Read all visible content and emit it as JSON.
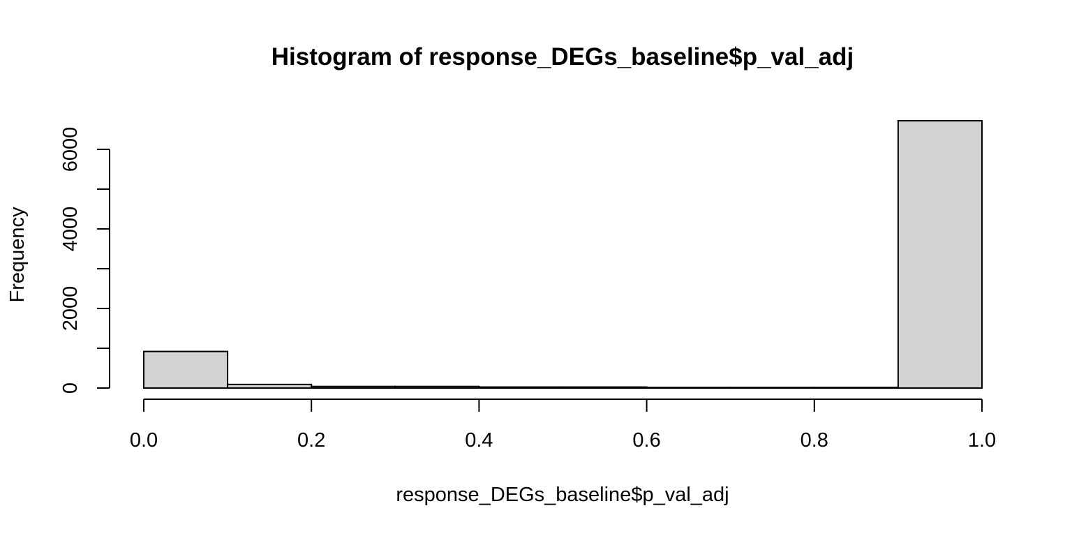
{
  "chart_data": {
    "type": "bar",
    "title": "Histogram of response_DEGs_baseline$p_val_adj",
    "xlabel": "response_DEGs_baseline$p_val_adj",
    "ylabel": "Frequency",
    "bins": [
      {
        "start": 0.0,
        "end": 0.1,
        "count": 920
      },
      {
        "start": 0.1,
        "end": 0.2,
        "count": 90
      },
      {
        "start": 0.2,
        "end": 0.3,
        "count": 40
      },
      {
        "start": 0.3,
        "end": 0.4,
        "count": 40
      },
      {
        "start": 0.4,
        "end": 0.5,
        "count": 25
      },
      {
        "start": 0.5,
        "end": 0.6,
        "count": 25
      },
      {
        "start": 0.6,
        "end": 0.7,
        "count": 15
      },
      {
        "start": 0.7,
        "end": 0.8,
        "count": 15
      },
      {
        "start": 0.8,
        "end": 0.9,
        "count": 15
      },
      {
        "start": 0.9,
        "end": 1.0,
        "count": 6720
      }
    ],
    "x_ticks": [
      "0.0",
      "0.2",
      "0.4",
      "0.6",
      "0.8",
      "1.0"
    ],
    "x_tick_values": [
      0.0,
      0.2,
      0.4,
      0.6,
      0.8,
      1.0
    ],
    "y_ticks": [
      "0",
      "2000",
      "4000",
      "6000"
    ],
    "y_tick_values": [
      0,
      2000,
      4000,
      6000
    ],
    "y_minor_ticks": [
      1000,
      3000,
      5000
    ],
    "xlim": [
      0.0,
      1.0
    ],
    "ylim": [
      0,
      6720
    ],
    "bar_fill": "#d3d3d3",
    "bar_stroke": "#000000",
    "grid": false
  }
}
